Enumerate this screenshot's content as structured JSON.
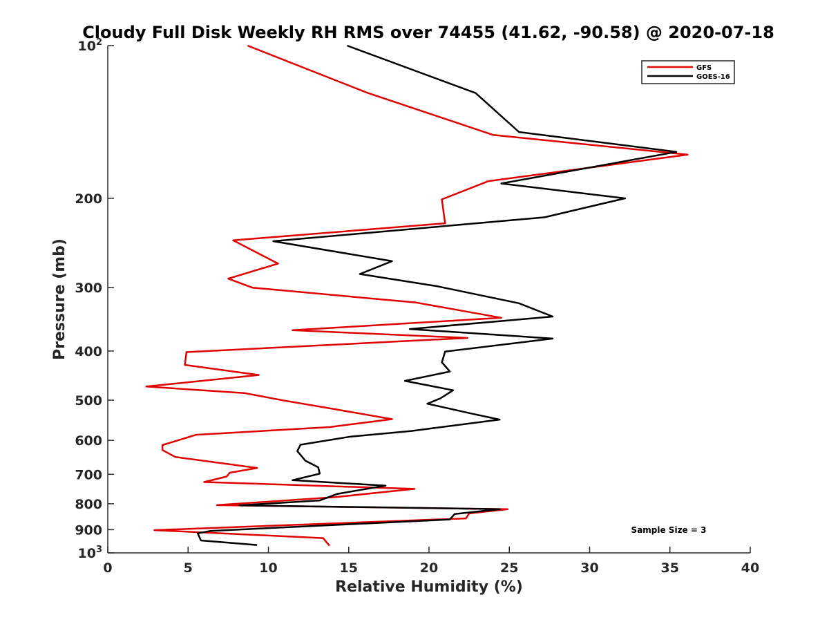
{
  "chart_data": {
    "type": "line",
    "title": "Cloudy Full Disk Weekly RH RMS over 74455 (41.62, -90.58) @ 2020-07-18",
    "xlabel": "Relative Humidity (%)",
    "ylabel": "Pressure (mb)",
    "xlim": [
      0,
      40
    ],
    "ylim": [
      100,
      1000
    ],
    "y_scale": "log",
    "y_reversed": true,
    "grid": false,
    "legend_position": "top-right",
    "annotation": "Sample Size = 3",
    "xticks": [
      0,
      5,
      10,
      15,
      20,
      25,
      30,
      35,
      40
    ],
    "yticks": [
      {
        "value": 100,
        "base": "10",
        "exp": "2"
      },
      {
        "value": 200,
        "label": "200"
      },
      {
        "value": 300,
        "label": "300"
      },
      {
        "value": 400,
        "label": "400"
      },
      {
        "value": 500,
        "label": "500"
      },
      {
        "value": 600,
        "label": "600"
      },
      {
        "value": 700,
        "label": "700"
      },
      {
        "value": 800,
        "label": "800"
      },
      {
        "value": 900,
        "label": "900"
      },
      {
        "value": 1000,
        "base": "10",
        "exp": "3"
      }
    ],
    "series": [
      {
        "name": "GFS",
        "color": "#e00000",
        "points": [
          [
            8.7,
            100
          ],
          [
            16.2,
            124
          ],
          [
            24.0,
            150
          ],
          [
            36.1,
            164
          ],
          [
            23.7,
            185
          ],
          [
            20.8,
            201
          ],
          [
            21.0,
            224
          ],
          [
            7.8,
            242
          ],
          [
            10.6,
            269
          ],
          [
            7.5,
            288
          ],
          [
            9.0,
            300
          ],
          [
            19.2,
            321
          ],
          [
            24.5,
            344
          ],
          [
            11.5,
            364
          ],
          [
            22.4,
            377
          ],
          [
            4.9,
            402
          ],
          [
            4.8,
            426
          ],
          [
            9.4,
            446
          ],
          [
            2.4,
            470
          ],
          [
            8.5,
            484
          ],
          [
            11.0,
            501
          ],
          [
            14.0,
            520
          ],
          [
            17.7,
            545
          ],
          [
            13.8,
            565
          ],
          [
            5.5,
            585
          ],
          [
            3.4,
            613
          ],
          [
            3.4,
            627
          ],
          [
            4.2,
            647
          ],
          [
            9.3,
            680
          ],
          [
            7.6,
            695
          ],
          [
            7.4,
            707
          ],
          [
            6.0,
            725
          ],
          [
            19.1,
            748
          ],
          [
            14.2,
            776
          ],
          [
            6.8,
            805
          ],
          [
            24.9,
            820
          ],
          [
            22.5,
            836
          ],
          [
            22.3,
            855
          ],
          [
            2.9,
            902
          ],
          [
            13.4,
            935
          ],
          [
            13.8,
            968
          ]
        ]
      },
      {
        "name": "GOES-16",
        "color": "#000000",
        "points": [
          [
            14.9,
            100
          ],
          [
            22.9,
            124
          ],
          [
            25.6,
            148
          ],
          [
            35.4,
            162
          ],
          [
            24.5,
            187
          ],
          [
            32.2,
            200
          ],
          [
            27.2,
            218
          ],
          [
            10.3,
            243
          ],
          [
            17.7,
            266
          ],
          [
            15.7,
            282
          ],
          [
            20.5,
            298
          ],
          [
            25.6,
            322
          ],
          [
            27.7,
            342
          ],
          [
            18.8,
            362
          ],
          [
            27.7,
            378
          ],
          [
            21.0,
            401
          ],
          [
            20.8,
            421
          ],
          [
            21.3,
            439
          ],
          [
            18.5,
            458
          ],
          [
            21.5,
            478
          ],
          [
            20.7,
            496
          ],
          [
            19.9,
            508
          ],
          [
            22.6,
            531
          ],
          [
            24.4,
            546
          ],
          [
            18.9,
            575
          ],
          [
            15.1,
            590
          ],
          [
            12.0,
            612
          ],
          [
            11.8,
            630
          ],
          [
            12.3,
            658
          ],
          [
            13.1,
            678
          ],
          [
            13.2,
            698
          ],
          [
            11.5,
            719
          ],
          [
            17.3,
            737
          ],
          [
            14.3,
            765
          ],
          [
            13.2,
            788
          ],
          [
            8.2,
            806
          ],
          [
            24.4,
            820
          ],
          [
            21.6,
            838
          ],
          [
            21.3,
            859
          ],
          [
            6.4,
            905
          ],
          [
            5.6,
            915
          ],
          [
            5.8,
            945
          ],
          [
            9.3,
            965
          ]
        ]
      }
    ]
  }
}
